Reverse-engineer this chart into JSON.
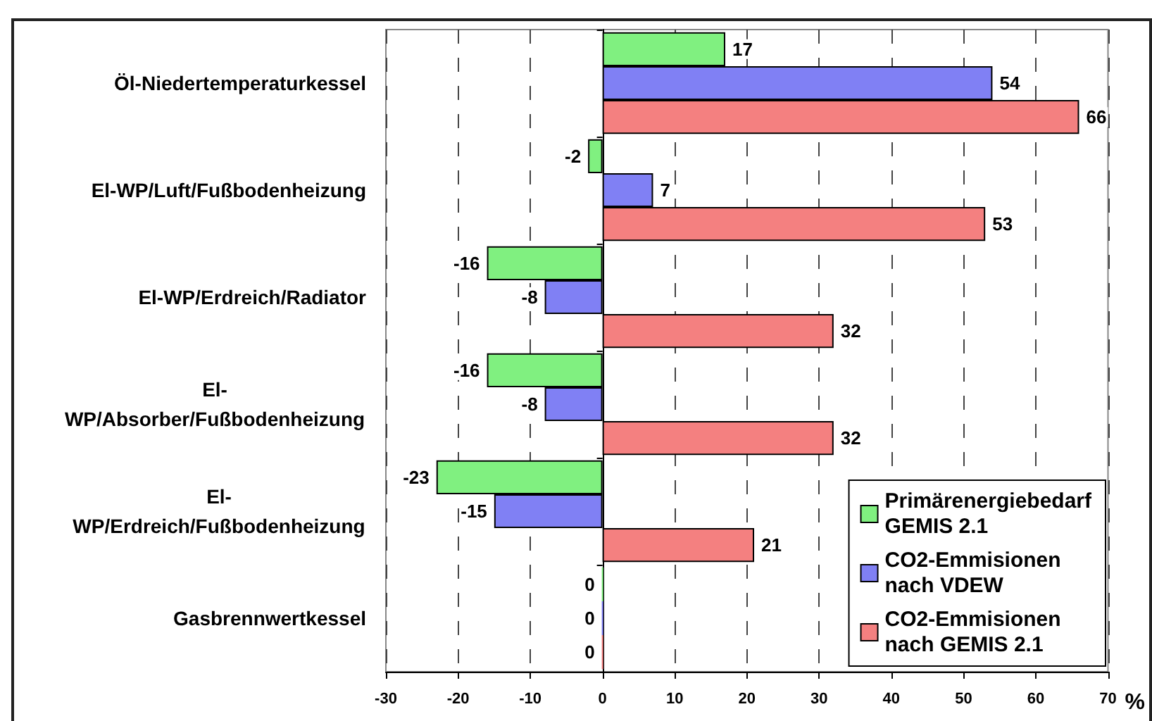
{
  "chart_data": {
    "type": "bar",
    "orientation": "horizontal",
    "categories": [
      "Öl-Niedertemperaturkessel",
      "El-WP/Luft/Fußbodenheizung",
      "El-WP/Erdreich/Radiator",
      "El-WP/Absorber/Fußbodenheizung",
      "El-WP/Erdreich/Fußbodenheizung",
      "Gasbrennwertkessel"
    ],
    "series": [
      {
        "name": "Primärenergiebedarf GEMIS 2.1",
        "color": "#80f080",
        "values": [
          17,
          -2,
          -16,
          -16,
          -23,
          0
        ]
      },
      {
        "name": "CO2-Emmisionen nach VDEW",
        "color": "#8080f4",
        "values": [
          54,
          7,
          -8,
          -8,
          -15,
          0
        ]
      },
      {
        "name": "CO2-Emmisionen nach GEMIS 2.1",
        "color": "#f48080",
        "values": [
          66,
          53,
          32,
          32,
          21,
          0
        ]
      }
    ],
    "xlabel": "%",
    "xlim": [
      -30,
      70
    ],
    "xticks": [
      -30,
      -20,
      -10,
      0,
      10,
      20,
      30,
      40,
      50,
      60,
      70
    ],
    "grid": "x",
    "legend": "bottom right",
    "data_labels": true
  }
}
